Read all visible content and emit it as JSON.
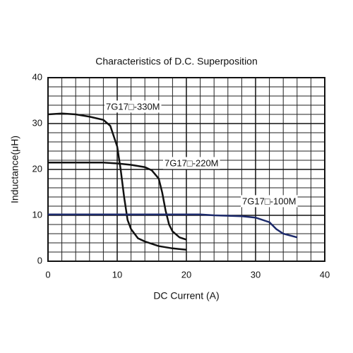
{
  "chart_data": {
    "type": "line",
    "title": "Characteristics of D.C. Superposition",
    "x_label": "DC Current (A)",
    "y_label": "Inductance(μH)",
    "xlim": [
      0,
      40
    ],
    "ylim": [
      0,
      40
    ],
    "xticks": [
      0,
      10,
      20,
      30,
      40
    ],
    "yticks": [
      0,
      10,
      20,
      30,
      40
    ],
    "x_minor_ticks": [
      2,
      4,
      6,
      8,
      12,
      14,
      16,
      18,
      22,
      24,
      26,
      28,
      32,
      34,
      36,
      38
    ],
    "y_minor_ticks": [
      2,
      4,
      6,
      8,
      12,
      14,
      16,
      18,
      22,
      24,
      26,
      28,
      32,
      34,
      36,
      38
    ],
    "grid": true,
    "series": [
      {
        "name": "7G17□-330M",
        "color": "#111111",
        "x": [
          0,
          2,
          4,
          6,
          8,
          9,
          10,
          10.5,
          11,
          11.5,
          12,
          13,
          14,
          16,
          18,
          20
        ],
        "values": [
          32,
          32.2,
          32,
          31.5,
          30.8,
          29.5,
          25,
          20,
          14,
          9,
          7,
          5,
          4.3,
          3.3,
          2.8,
          2.5
        ]
      },
      {
        "name": "7G17□-220M",
        "color": "#111111",
        "x": [
          0,
          8,
          10,
          12,
          14,
          15,
          16,
          16.5,
          17,
          17.5,
          18,
          19,
          20
        ],
        "values": [
          21.5,
          21.5,
          21.3,
          21,
          20.5,
          19.8,
          18,
          15,
          11,
          8,
          6.5,
          5.2,
          4.7
        ]
      },
      {
        "name": "7G17□-100M",
        "color": "#1c2a6b",
        "x": [
          0,
          22,
          24,
          28,
          30,
          32,
          33,
          34,
          36
        ],
        "values": [
          10.2,
          10.2,
          10,
          9.8,
          9.5,
          8.5,
          7,
          6,
          5.2
        ]
      }
    ]
  }
}
